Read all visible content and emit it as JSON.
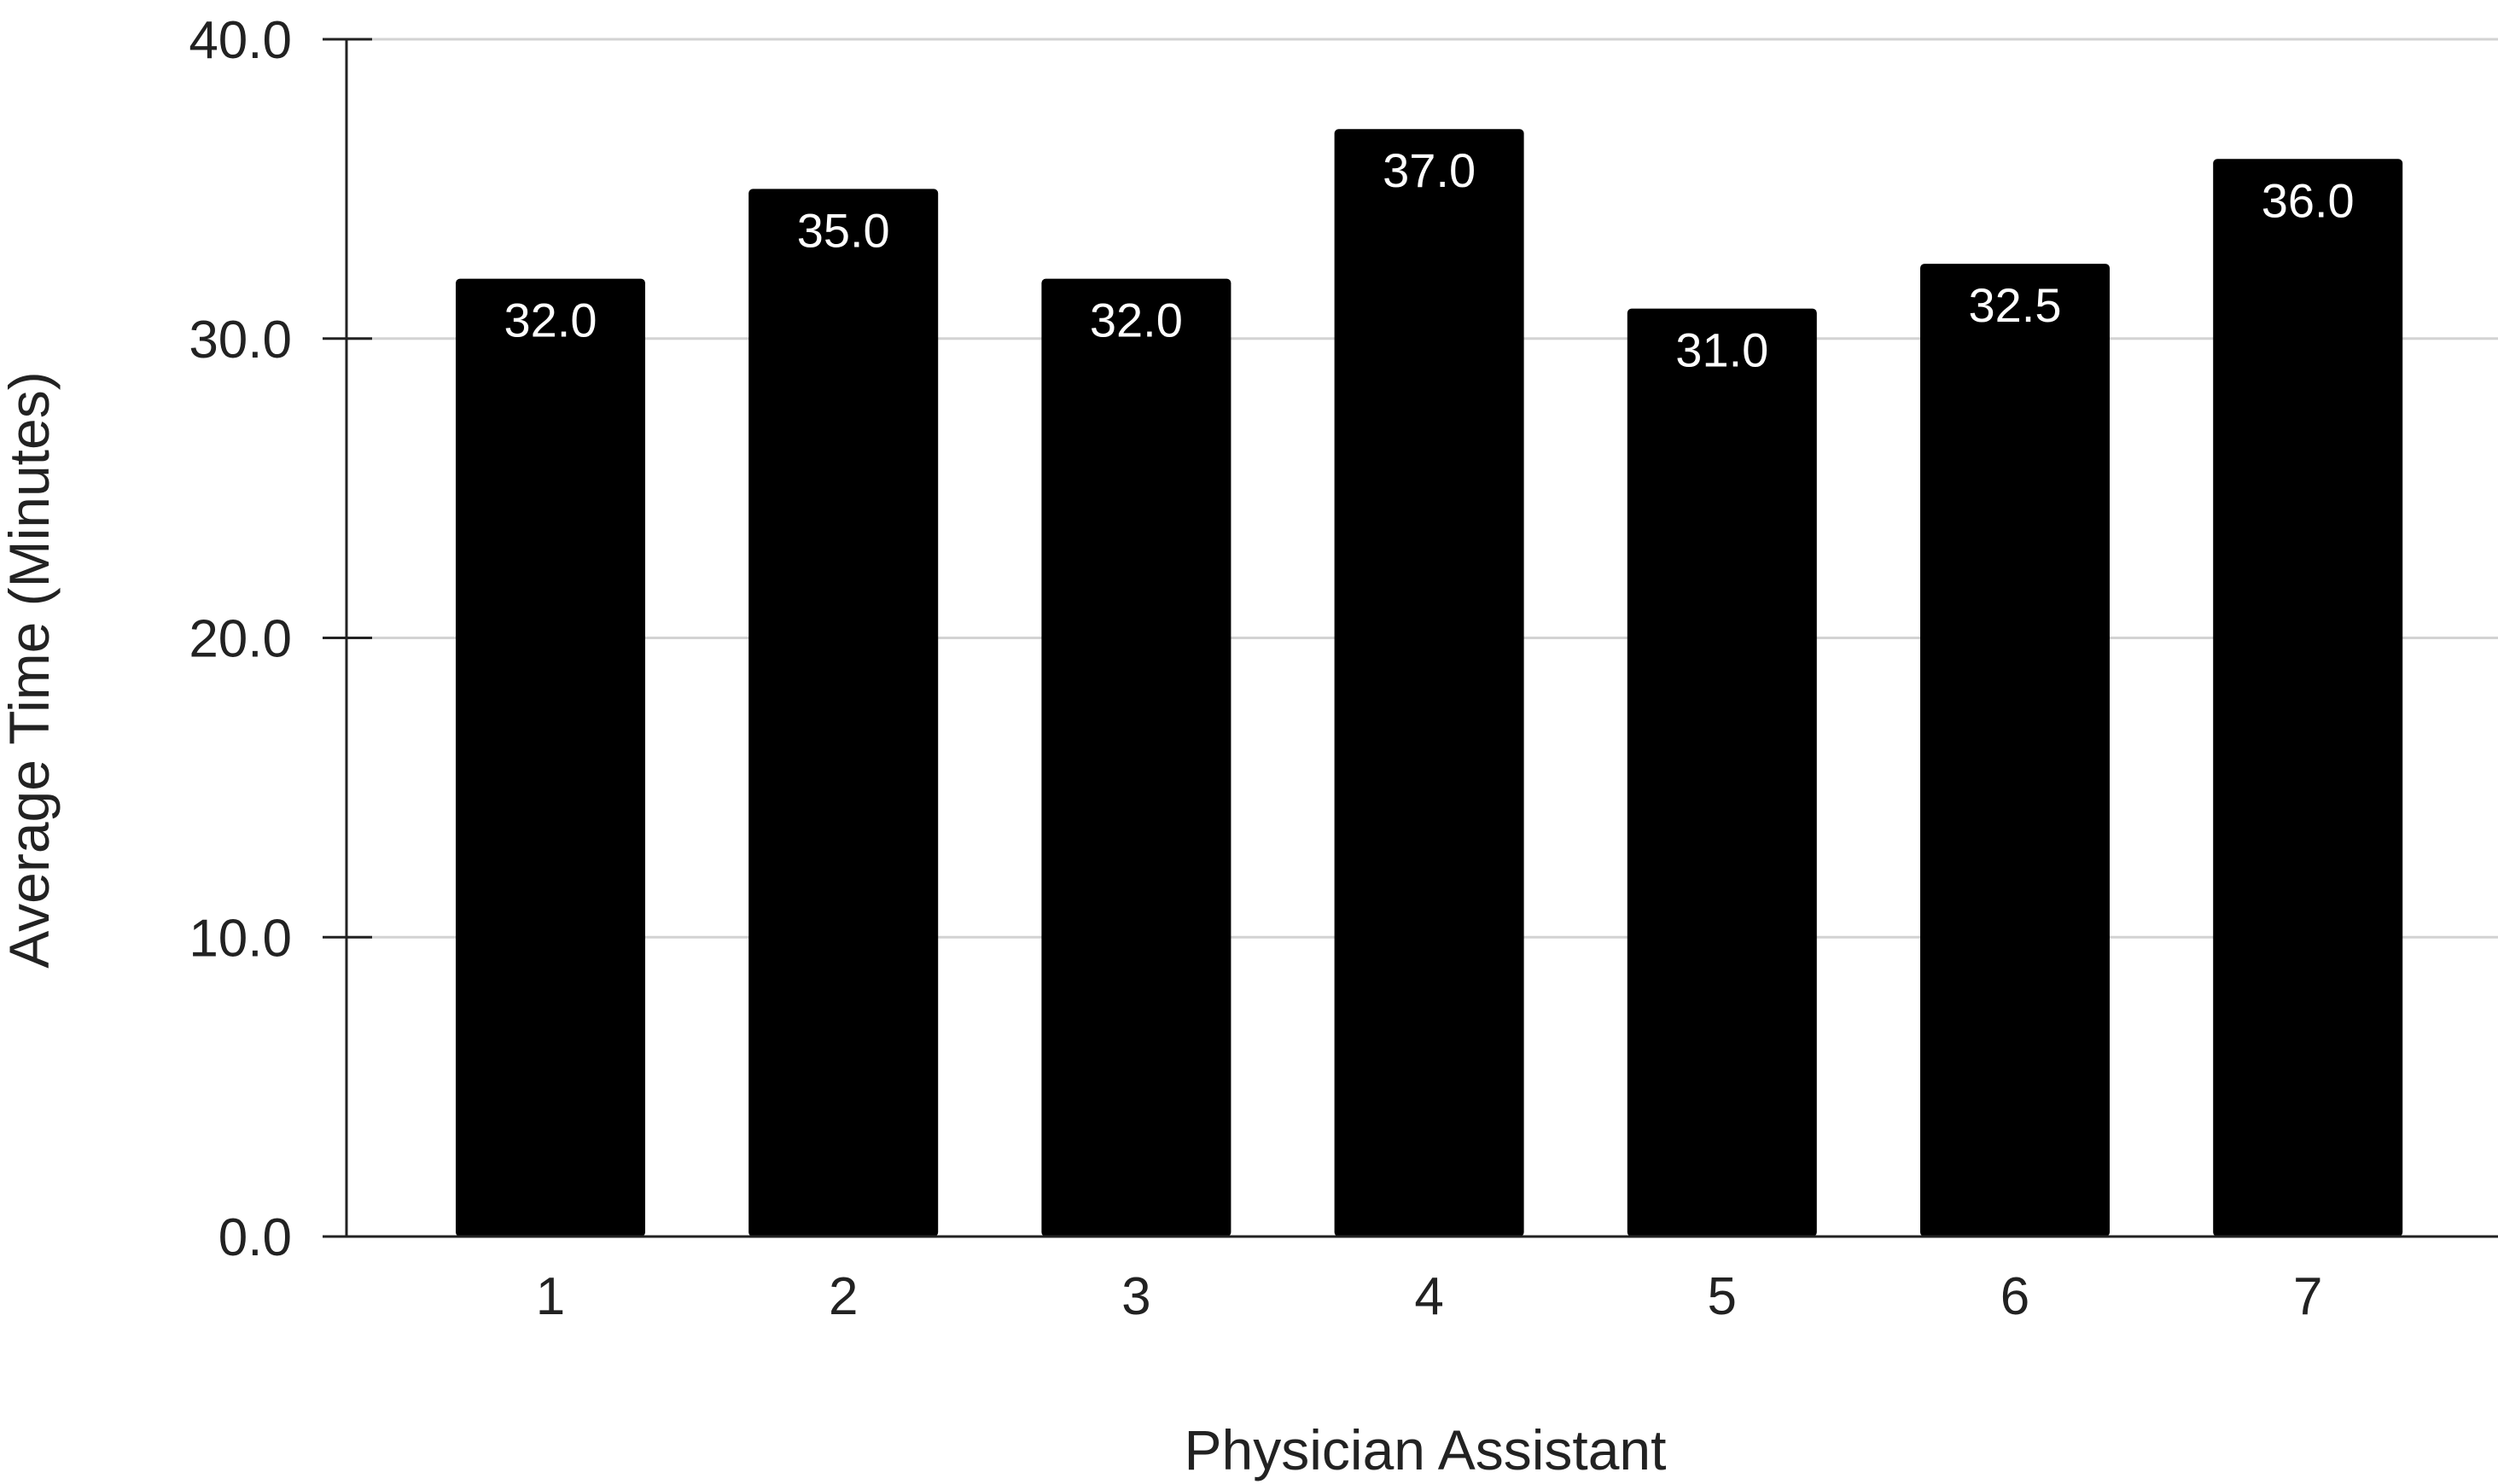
{
  "chart_data": {
    "type": "bar",
    "categories": [
      "1",
      "2",
      "3",
      "4",
      "5",
      "6",
      "7"
    ],
    "values": [
      32.0,
      35.0,
      32.0,
      37.0,
      31.0,
      32.5,
      36.0
    ],
    "data_labels": [
      "32.0",
      "35.0",
      "32.0",
      "37.0",
      "31.0",
      "32.5",
      "36.0"
    ],
    "title": "",
    "xlabel": "Physician Assistant",
    "ylabel": "Average Time (Minutes)",
    "ylim": [
      0,
      40
    ],
    "yticks": [
      "0.0",
      "10.0",
      "20.0",
      "30.0",
      "40.0"
    ],
    "grid": true,
    "legend": "none",
    "colors": {
      "bar": "#000000",
      "data_label": "#ffffff",
      "grid": "#d3d3d3",
      "axis": "#222222",
      "text": "#222222",
      "background": "#ffffff"
    }
  }
}
